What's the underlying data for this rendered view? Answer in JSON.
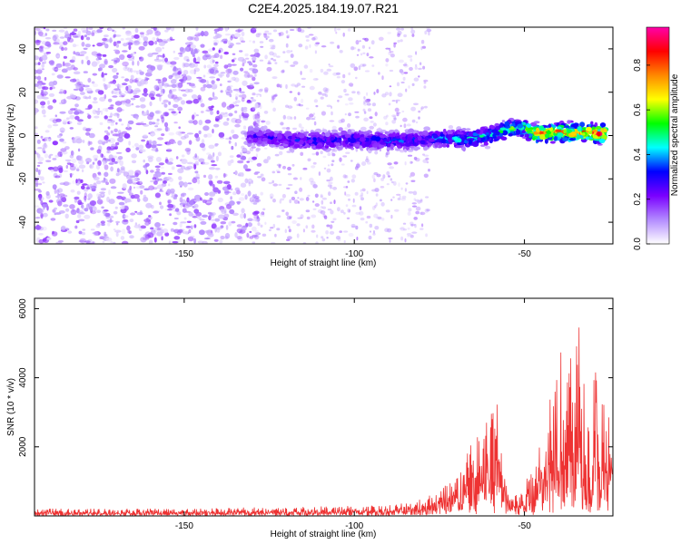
{
  "chart_data": [
    {
      "type": "heatmap",
      "title": "C2E4.2025.184.19.07.R21",
      "xlabel": "Height of straight line (km)",
      "ylabel": "Frequency (Hz)",
      "xlim": [
        -194,
        -24
      ],
      "ylim": [
        -50,
        50
      ],
      "x_ticks": [
        -150,
        -100,
        -50
      ],
      "y_ticks": [
        -40,
        -20,
        0,
        20,
        40
      ],
      "grid": false,
      "colorbar": {
        "label": "Normalized spectral amplitude",
        "range": [
          0,
          0.97
        ],
        "ticks": [
          0.0,
          0.2,
          0.4,
          0.6,
          0.8
        ],
        "colormap": [
          "#ffffff",
          "#b38bff",
          "#7a00ff",
          "#0000ff",
          "#00ffff",
          "#00ff00",
          "#ffff00",
          "#ff8800",
          "#ff0000",
          "#ff00aa"
        ]
      },
      "ridge": {
        "x": [
          -131,
          -120,
          -110,
          -100,
          -90,
          -80,
          -75,
          -70,
          -65,
          -60,
          -55,
          -50,
          -48,
          -45,
          -40,
          -35,
          -30,
          -26
        ],
        "y": [
          0,
          -2,
          -2.5,
          -2,
          -2.5,
          -2,
          -1,
          -2,
          -1,
          0,
          3,
          4,
          1,
          1,
          1.5,
          1.5,
          1,
          1
        ],
        "peak_amplitude": [
          0.3,
          0.32,
          0.35,
          0.35,
          0.38,
          0.35,
          0.4,
          0.45,
          0.48,
          0.5,
          0.55,
          0.6,
          0.8,
          0.85,
          0.85,
          0.85,
          0.9,
          0.9
        ]
      },
      "noise_region": {
        "x": [
          -194,
          -130
        ],
        "amplitude": 0.15
      }
    },
    {
      "type": "line",
      "xlabel": "Height of straight line (km)",
      "ylabel": "SNR (10 * v/v)",
      "xlim": [
        -194,
        -24
      ],
      "ylim": [
        0,
        6300
      ],
      "x_ticks": [
        -150,
        -100,
        -50
      ],
      "y_ticks": [
        2000,
        4000,
        6000
      ],
      "grid": false,
      "series": [
        {
          "color": "#ee3333",
          "x": [
            -194,
            -180,
            -160,
            -140,
            -120,
            -100,
            -90,
            -82,
            -78,
            -74,
            -70,
            -67,
            -64,
            -62,
            -60,
            -58,
            -56,
            -54,
            -52,
            -50,
            -48,
            -46,
            -44,
            -42,
            -40,
            -38,
            -36,
            -34,
            -32,
            -30,
            -29,
            -28,
            -27,
            -26,
            -25,
            -24
          ],
          "y": [
            200,
            200,
            200,
            220,
            250,
            280,
            300,
            400,
            600,
            900,
            1200,
            1800,
            2200,
            2700,
            2900,
            3200,
            1400,
            900,
            500,
            900,
            1300,
            2300,
            2700,
            4000,
            5400,
            3400,
            4600,
            5500,
            3200,
            2600,
            6300,
            2600,
            3600,
            2800,
            3200,
            3400
          ]
        }
      ]
    }
  ]
}
